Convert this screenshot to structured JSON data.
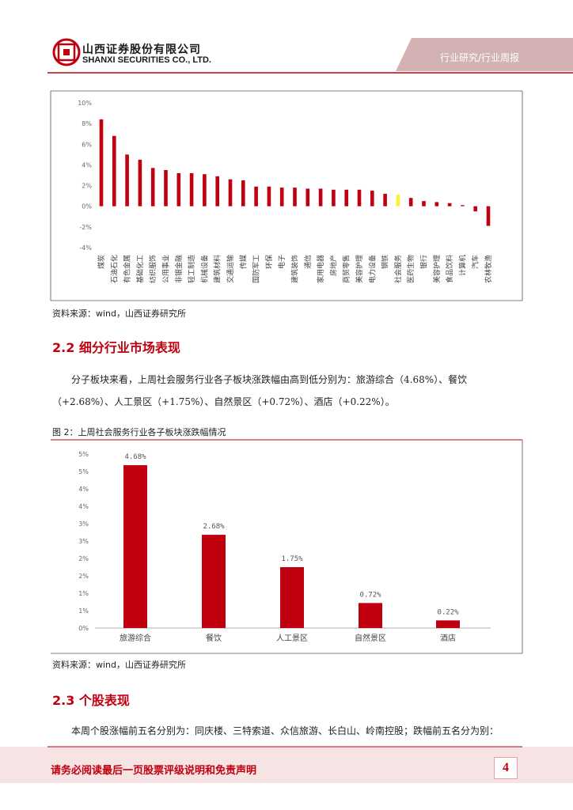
{
  "header": {
    "company_cn": "山西证券股份有限公司",
    "company_en": "SHANXI SECURITIES CO., LTD.",
    "report_type": "行业研究/行业周报",
    "colors": {
      "brand_red": "#c0000f",
      "header_band": "#d2b2b2"
    }
  },
  "sections": {
    "source_1": "资料来源：wind，山西证券研究所",
    "s22_title": "2.2  细分行业市场表现",
    "s22_para": "分子板块来看，上周社会服务行业各子板块涨跌幅由高到低分别为：旅游综合（4.68%）、餐饮（+2.68%）、人工景区（+1.75%）、自然景区（+0.72%）、酒店（+0.22%）。",
    "fig2_title": "图 2：上周社会服务行业各子板块涨跌幅情况",
    "source_2": "资料来源：wind，山西证券研究所",
    "s23_title": "2.3  个股表现",
    "s23_para": "本周个股涨幅前五名分别为：同庆楼、三特索道、众信旅游、长白山、岭南控股；跌幅前五名分为别："
  },
  "footer": {
    "disclaimer": "请务必阅读最后一页股票评级说明和免责声明",
    "page_number": "4"
  },
  "chart_data": [
    {
      "type": "bar",
      "categories": [
        "煤炭",
        "石油石化",
        "有色金属",
        "基础化工",
        "纺织服饰",
        "公用事业",
        "非银金融",
        "轻工制造",
        "机械设备",
        "建筑材料",
        "交通运输",
        "传媒",
        "国防军工",
        "环保",
        "电子",
        "建筑装饰",
        "通信",
        "家用电器",
        "房地产",
        "商贸零售",
        "美容护理",
        "电力设备",
        "钢铁",
        "社会服务",
        "医药生物",
        "银行",
        "美容护理",
        "食品饮料",
        "计算机",
        "汽车",
        "农林牧渔"
      ],
      "values": [
        8.4,
        6.8,
        5.0,
        4.5,
        3.7,
        3.5,
        3.2,
        3.2,
        3.1,
        2.9,
        2.6,
        2.5,
        1.9,
        1.9,
        1.8,
        1.8,
        1.7,
        1.7,
        1.6,
        1.6,
        1.6,
        1.5,
        1.2,
        1.1,
        0.8,
        0.5,
        0.4,
        0.3,
        0.1,
        -0.5,
        -1.9
      ],
      "highlight_index": 23,
      "y_ticks": [
        "10%",
        "8%",
        "6%",
        "4%",
        "2%",
        "0%",
        "-2%",
        "-4%"
      ],
      "ylim": [
        -4,
        10
      ],
      "bar_color": "#c0000f",
      "highlight_color": "#ffee33"
    },
    {
      "type": "bar",
      "categories": [
        "旅游综合",
        "餐饮",
        "人工景区",
        "自然景区",
        "酒店"
      ],
      "values": [
        4.68,
        2.68,
        1.75,
        0.72,
        0.22
      ],
      "data_labels": [
        "4.68%",
        "2.68%",
        "1.75%",
        "0.72%",
        "0.22%"
      ],
      "y_ticks": [
        "5%",
        "5%",
        "4%",
        "4%",
        "3%",
        "3%",
        "2%",
        "2%",
        "1%",
        "1%",
        "0%"
      ],
      "ylim": [
        0,
        5
      ],
      "bar_color": "#c0000f"
    }
  ]
}
